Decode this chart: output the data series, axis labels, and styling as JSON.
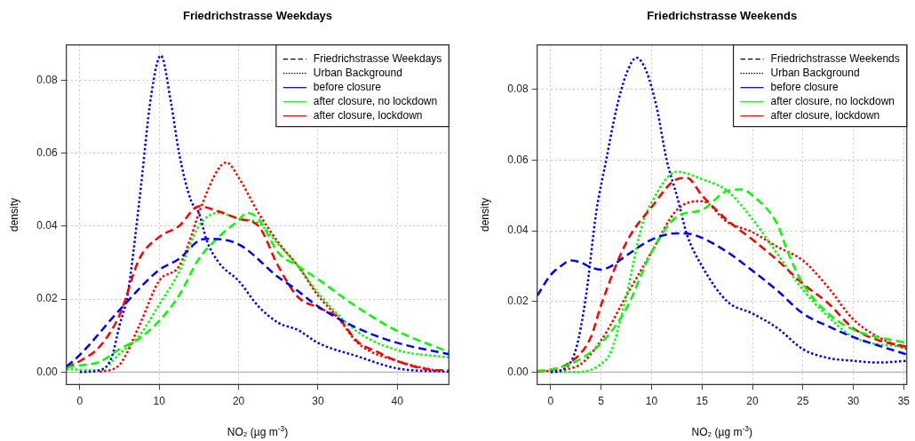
{
  "chart_data": [
    {
      "type": "line",
      "title": "Friedrichstrasse Weekdays",
      "xlabel": "NO₂ (µg m$^{-3}$)",
      "ylabel": "density",
      "xlim": [
        -1.7,
        46.5
      ],
      "ylim": [
        -0.0034,
        0.0896
      ],
      "xticks": [
        0,
        10,
        20,
        30,
        40
      ],
      "yticks": [
        {
          "value": 0,
          "label": "0.00"
        },
        0.02,
        0.04,
        0.06,
        0.08
      ],
      "grid": true,
      "legend": "top right",
      "marker": "none",
      "ref_lines": [
        {
          "axis": "y",
          "value": 0,
          "color": "#b4b4b4"
        }
      ],
      "series": [
        {
          "color": "#0000ff",
          "line_style": "dashed",
          "x": [
            -1.7,
            0,
            5,
            10,
            12.5,
            15,
            16,
            20,
            25,
            27,
            30,
            35,
            40,
            46.5
          ],
          "values": [
            0.0015,
            0.0047,
            0.017,
            0.028,
            0.031,
            0.036,
            0.0365,
            0.035,
            0.026,
            0.023,
            0.018,
            0.012,
            0.008,
            0.0049
          ]
        },
        {
          "color": "#00ff00",
          "line_style": "dashed",
          "x": [
            -1.7,
            0,
            2.5,
            5,
            7.5,
            10,
            12.5,
            15,
            17.5,
            20,
            21,
            22.5,
            25,
            27.5,
            30,
            35,
            40,
            46.5
          ],
          "values": [
            0.0013,
            0.0018,
            0.0028,
            0.0063,
            0.0092,
            0.014,
            0.021,
            0.031,
            0.037,
            0.0416,
            0.0436,
            0.042,
            0.0327,
            0.029,
            0.0254,
            0.0177,
            0.0112,
            0.0055
          ]
        },
        {
          "color": "#ff0000",
          "line_style": "dashed",
          "x": [
            -1.7,
            0,
            2.5,
            5,
            7.5,
            10,
            12.5,
            15,
            17.5,
            20,
            22.5,
            25,
            27.5,
            30,
            32.5,
            35,
            37.5,
            40,
            44,
            46.5
          ],
          "values": [
            0.0013,
            0.003,
            0.007,
            0.0156,
            0.031,
            0.037,
            0.04,
            0.0454,
            0.044,
            0.042,
            0.04,
            0.029,
            0.0205,
            0.0177,
            0.015,
            0.0083,
            0.0055,
            0.003,
            0.0007,
            0.0005
          ]
        },
        {
          "color": "#0000ff",
          "line_style": "dotted",
          "x": [
            0,
            2.5,
            4,
            5,
            6,
            7.5,
            9,
            10.2,
            11.5,
            12.5,
            14,
            15,
            16,
            17.5,
            20,
            22.5,
            25,
            27.5,
            30,
            35,
            40,
            46.5
          ],
          "values": [
            0,
            0.0005,
            0.004,
            0.0128,
            0.021,
            0.047,
            0.076,
            0.0867,
            0.0736,
            0.06,
            0.047,
            0.0436,
            0.036,
            0.03,
            0.025,
            0.018,
            0.0135,
            0.0115,
            0.008,
            0.0043,
            0.001,
            0.0001
          ]
        },
        {
          "color": "#00ff00",
          "line_style": "dotted",
          "x": [
            -1.7,
            2.5,
            5,
            7.5,
            10,
            12.5,
            15,
            17.5,
            20,
            22.5,
            25,
            27.5,
            30,
            35,
            40,
            46.5
          ],
          "values": [
            0.0008,
            0.0005,
            0.005,
            0.01,
            0.0185,
            0.0274,
            0.04,
            0.0436,
            0.042,
            0.0408,
            0.035,
            0.029,
            0.0217,
            0.011,
            0.006,
            0.004
          ]
        },
        {
          "color": "#ff0000",
          "line_style": "dotted",
          "x": [
            2.5,
            5,
            7.5,
            10,
            12.5,
            14,
            15,
            17.5,
            18.5,
            20,
            22.5,
            25,
            27.5,
            30,
            32.5,
            35,
            40,
            45
          ],
          "values": [
            0,
            0.002,
            0.0128,
            0.025,
            0.029,
            0.037,
            0.0436,
            0.0558,
            0.0574,
            0.0533,
            0.0436,
            0.0355,
            0.029,
            0.021,
            0.015,
            0.008,
            0.003,
            0.0003
          ]
        },
        {
          "name": "Friedrichstrasse Weekdays",
          "color": "#000000",
          "line_style": "dashed"
        },
        {
          "name": "Urban Background",
          "color": "#000000",
          "line_style": "dotted"
        },
        {
          "name": "before closure",
          "color": "#0000ff",
          "line_style": "solid"
        },
        {
          "name": "after closure, no lockdown",
          "color": "#00ff00",
          "line_style": "solid"
        },
        {
          "name": "after closure, lockdown",
          "color": "#ff0000",
          "line_style": "solid"
        }
      ]
    },
    {
      "type": "line",
      "title": "Friedrichstrasse Weekends",
      "xlabel": "NO₂ (µg m$^{-3}$)",
      "ylabel": "density",
      "xlim": [
        -1.34,
        35.3
      ],
      "ylim": [
        -0.0035,
        0.0926
      ],
      "xticks": [
        0,
        5,
        10,
        15,
        20,
        25,
        30,
        35
      ],
      "yticks": [
        {
          "value": 0,
          "label": "0.00"
        },
        0.02,
        0.04,
        0.06,
        0.08
      ],
      "grid": true,
      "legend": "top right",
      "marker": "none",
      "ref_lines": [
        {
          "axis": "y",
          "value": 0,
          "color": "#b4b4b4"
        }
      ],
      "series": [
        {
          "color": "#0000ff",
          "line_style": "dashed",
          "x": [
            -1.34,
            0,
            1,
            2,
            3,
            4,
            5,
            6,
            7.5,
            10,
            12.5,
            14,
            15,
            17.5,
            20,
            22.5,
            25,
            27.5,
            30,
            32.5,
            35.3
          ],
          "values": [
            0.0216,
            0.0275,
            0.03,
            0.0316,
            0.031,
            0.0296,
            0.029,
            0.03,
            0.033,
            0.0375,
            0.0393,
            0.039,
            0.038,
            0.034,
            0.0287,
            0.023,
            0.0166,
            0.013,
            0.0099,
            0.0075,
            0.005
          ]
        },
        {
          "color": "#00ff00",
          "line_style": "dashed",
          "x": [
            -1.34,
            0,
            2.5,
            5,
            7.5,
            10,
            12.5,
            15,
            17.5,
            19,
            20,
            22.5,
            23.5,
            25,
            27.5,
            30,
            35.3
          ],
          "values": [
            0.0003,
            0.0007,
            0.003,
            0.0082,
            0.018,
            0.034,
            0.044,
            0.0459,
            0.0513,
            0.0517,
            0.05,
            0.0417,
            0.034,
            0.025,
            0.0166,
            0.012,
            0.0082
          ]
        },
        {
          "color": "#ff0000",
          "line_style": "dashed",
          "x": [
            -1.34,
            0,
            2.5,
            4,
            5,
            7.5,
            10,
            12.5,
            13.5,
            15,
            17.5,
            20,
            22.5,
            25,
            27.5,
            30,
            32.5,
            35.3
          ],
          "values": [
            0.0003,
            0.0006,
            0.004,
            0.01,
            0.019,
            0.0367,
            0.0467,
            0.0546,
            0.055,
            0.05,
            0.043,
            0.0375,
            0.0316,
            0.025,
            0.0195,
            0.0124,
            0.009,
            0.0072
          ]
        },
        {
          "color": "#0000ff",
          "line_style": "dotted",
          "x": [
            0,
            1,
            2.5,
            3.5,
            4.5,
            5.5,
            6.5,
            7.5,
            8.5,
            9.5,
            10.5,
            11.5,
            12.5,
            13.5,
            15,
            17.5,
            20,
            22.5,
            25,
            27.5,
            30,
            32.5,
            35.3
          ],
          "values": [
            0,
            0.0004,
            0.0065,
            0.0216,
            0.045,
            0.06,
            0.0743,
            0.0844,
            0.089,
            0.085,
            0.075,
            0.06,
            0.05,
            0.039,
            0.03,
            0.02,
            0.0166,
            0.0124,
            0.0065,
            0.004,
            0.0032,
            0.0027,
            0.0032
          ]
        },
        {
          "color": "#00ff00",
          "line_style": "dotted",
          "x": [
            0,
            2.5,
            5,
            6,
            7.5,
            9,
            10,
            12.5,
            15,
            17.5,
            20,
            22.5,
            25,
            27.5,
            30,
            35.3
          ],
          "values": [
            0,
            0,
            0.0023,
            0.006,
            0.0216,
            0.041,
            0.048,
            0.0567,
            0.0546,
            0.0513,
            0.0433,
            0.0333,
            0.0233,
            0.0157,
            0.0099,
            0.0069
          ]
        },
        {
          "color": "#ff0000",
          "line_style": "dotted",
          "x": [
            -1.34,
            2.5,
            5,
            7.5,
            10,
            12.5,
            15,
            17.5,
            20,
            22.5,
            25,
            27.5,
            30,
            32.5,
            35.3
          ],
          "values": [
            0.0002,
            0.0015,
            0.009,
            0.0216,
            0.034,
            0.0459,
            0.0484,
            0.0425,
            0.0396,
            0.0354,
            0.0316,
            0.024,
            0.0149,
            0.0099,
            0.0065
          ]
        },
        {
          "name": "Friedrichstrasse Weekends",
          "color": "#000000",
          "line_style": "dashed"
        },
        {
          "name": "Urban Background",
          "color": "#000000",
          "line_style": "dotted"
        },
        {
          "name": "before closure",
          "color": "#0000ff",
          "line_style": "solid"
        },
        {
          "name": "after closure, no lockdown",
          "color": "#00ff00",
          "line_style": "solid"
        },
        {
          "name": "after closure, lockdown",
          "color": "#ff0000",
          "line_style": "solid"
        }
      ]
    }
  ]
}
